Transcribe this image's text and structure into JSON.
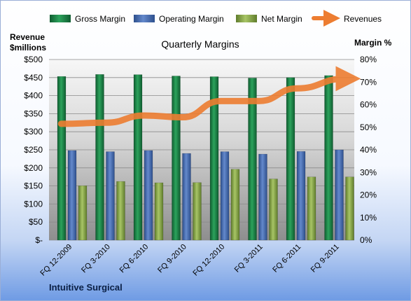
{
  "chart_data": {
    "type": "bar",
    "title": "Quarterly Margins",
    "company": "Intuitive Surgical",
    "y_left_label": [
      "Revenue",
      "$millions"
    ],
    "y_right_label": "Margin %",
    "categories": [
      "FQ 12-2009",
      "FQ 3-2010",
      "FQ 6-2010",
      "FQ 9-2010",
      "FQ 12-2010",
      "FQ 3-2011",
      "FQ 6-2011",
      "FQ 9-2011"
    ],
    "y_left_ticks": [
      "$-",
      "$50",
      "$100",
      "$150",
      "$200",
      "$250",
      "$300",
      "$350",
      "$400",
      "$450",
      "$500"
    ],
    "y_right_ticks": [
      "0%",
      "10%",
      "20%",
      "30%",
      "40%",
      "50%",
      "60%",
      "70%",
      "80%"
    ],
    "y_left_range": [
      0,
      500
    ],
    "y_right_range": [
      0,
      80
    ],
    "legend_position": "top",
    "grid": true,
    "series": [
      {
        "name": "Gross Margin",
        "type": "bar",
        "axis": "right",
        "color": "#1f8a4c",
        "values": [
          72.5,
          73.4,
          73.3,
          72.7,
          72.4,
          71.8,
          72.0,
          72.9
        ]
      },
      {
        "name": "Operating Margin",
        "type": "bar",
        "axis": "right",
        "color": "#4a70b5",
        "values": [
          39.7,
          39.2,
          39.7,
          38.4,
          39.2,
          38.1,
          39.3,
          40.0
        ]
      },
      {
        "name": "Net Margin",
        "type": "bar",
        "axis": "right",
        "color": "#8cae4c",
        "values": [
          24.1,
          26.0,
          25.4,
          25.5,
          31.4,
          27.1,
          28.0,
          28.0
        ]
      },
      {
        "name": "Revenues",
        "type": "line",
        "axis": "left",
        "color": "#ed7d31",
        "values": [
          322,
          325,
          345,
          340,
          385,
          385,
          420,
          447
        ]
      }
    ]
  }
}
